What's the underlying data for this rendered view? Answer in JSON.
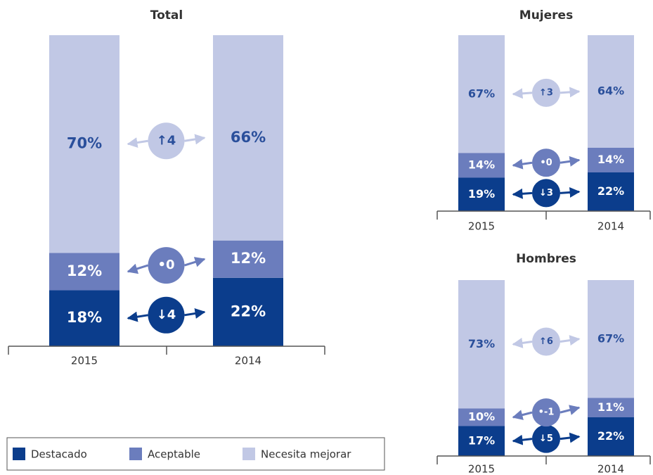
{
  "chart_data": [
    {
      "type": "bar",
      "stacked": true,
      "title": "Total",
      "categories": [
        "2015",
        "2014"
      ],
      "ylim": [
        0,
        100
      ],
      "series": [
        {
          "name": "Destacado",
          "color": "#0b3d8c",
          "values": [
            18,
            22
          ],
          "value_labels": [
            "18%",
            "22%"
          ],
          "change": "↓4"
        },
        {
          "name": "Aceptable",
          "color": "#6b7dbd",
          "values": [
            12,
            12
          ],
          "value_labels": [
            "12%",
            "12%"
          ],
          "change": "•0"
        },
        {
          "name": "Necesita mejorar",
          "color": "#c1c8e5",
          "values": [
            70,
            66
          ],
          "value_labels": [
            "70%",
            "66%"
          ],
          "change": "↑4"
        }
      ]
    },
    {
      "type": "bar",
      "stacked": true,
      "title": "Mujeres",
      "categories": [
        "2015",
        "2014"
      ],
      "ylim": [
        0,
        100
      ],
      "series": [
        {
          "name": "Destacado",
          "color": "#0b3d8c",
          "values": [
            19,
            22
          ],
          "value_labels": [
            "19%",
            "22%"
          ],
          "change": "↓3"
        },
        {
          "name": "Aceptable",
          "color": "#6b7dbd",
          "values": [
            14,
            14
          ],
          "value_labels": [
            "14%",
            "14%"
          ],
          "change": "•0"
        },
        {
          "name": "Necesita mejorar",
          "color": "#c1c8e5",
          "values": [
            67,
            64
          ],
          "value_labels": [
            "67%",
            "64%"
          ],
          "change": "↑3"
        }
      ]
    },
    {
      "type": "bar",
      "stacked": true,
      "title": "Hombres",
      "categories": [
        "2015",
        "2014"
      ],
      "ylim": [
        0,
        100
      ],
      "series": [
        {
          "name": "Destacado",
          "color": "#0b3d8c",
          "values": [
            17,
            22
          ],
          "value_labels": [
            "17%",
            "22%"
          ],
          "change": "↓5"
        },
        {
          "name": "Aceptable",
          "color": "#6b7dbd",
          "values": [
            10,
            11
          ],
          "value_labels": [
            "10%",
            "11%"
          ],
          "change": "•-1"
        },
        {
          "name": "Necesita mejorar",
          "color": "#c1c8e5",
          "values": [
            73,
            67
          ],
          "value_labels": [
            "73%",
            "67%"
          ],
          "change": "↑6"
        }
      ]
    }
  ]
}
